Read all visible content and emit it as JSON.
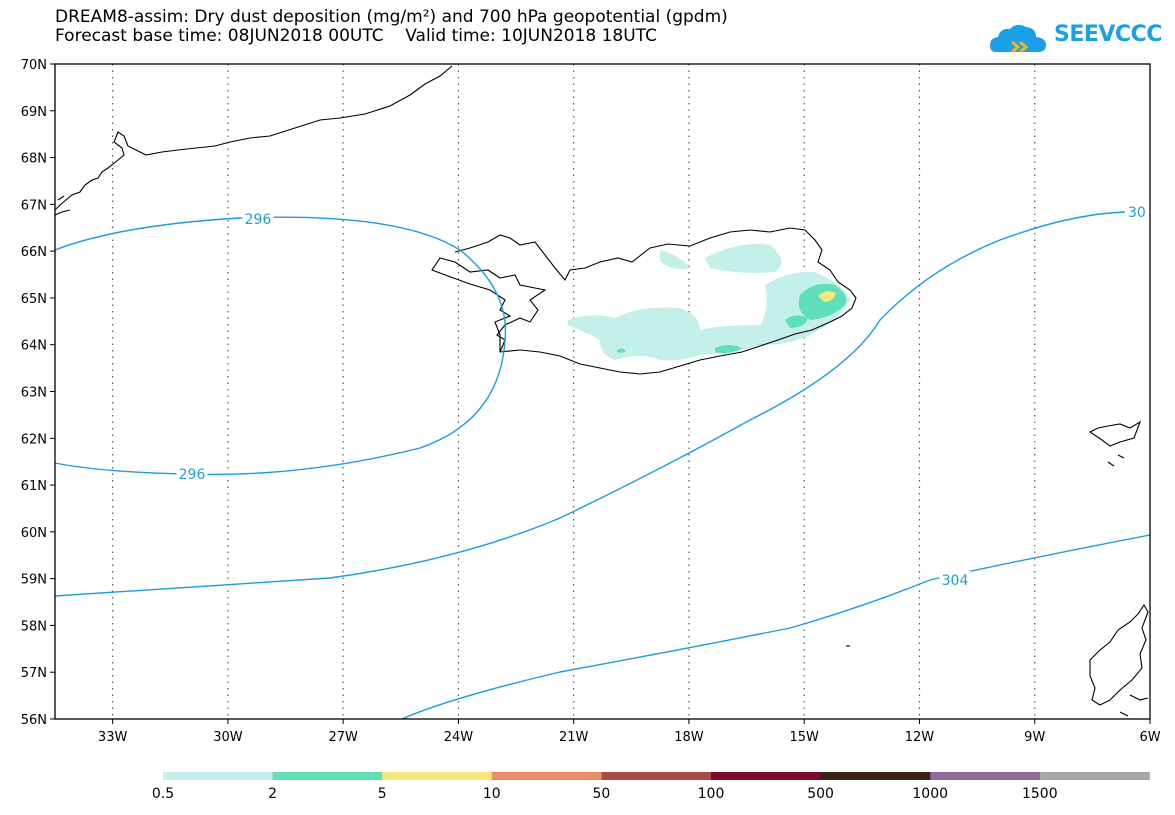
{
  "header": {
    "line1": "DREAM8-assim: Dry dust deposition (mg/m²) and 700 hPa geopotential (gpdm)",
    "line2": "Forecast base time: 08JUN2018 00UTC    Valid time: 10JUN2018 18UTC"
  },
  "logo": {
    "text": "SEEVCCC",
    "color": "#1aa0e8"
  },
  "map": {
    "lat_range": [
      56,
      70
    ],
    "lon_range": [
      -34.5,
      -6
    ],
    "lat_labels": [
      "70N",
      "69N",
      "68N",
      "67N",
      "66N",
      "65N",
      "64N",
      "63N",
      "62N",
      "61N",
      "60N",
      "59N",
      "58N",
      "57N",
      "56N"
    ],
    "lon_labels": [
      "33W",
      "30W",
      "27W",
      "24W",
      "21W",
      "18W",
      "15W",
      "12W",
      "9W",
      "6W"
    ],
    "contour_color": "#1a9de0",
    "contour_labels": [
      "296",
      "296",
      "30",
      "304"
    ]
  },
  "legend": {
    "colors": [
      "#c4f0ea",
      "#5fe0b8",
      "#f8e67a",
      "#eb8e68",
      "#a84b44",
      "#820a2c",
      "#3a2214",
      "#8e6a9a",
      "#a8a8a8"
    ],
    "labels": [
      "0.5",
      "2",
      "5",
      "10",
      "50",
      "100",
      "500",
      "1000",
      "1500"
    ]
  }
}
